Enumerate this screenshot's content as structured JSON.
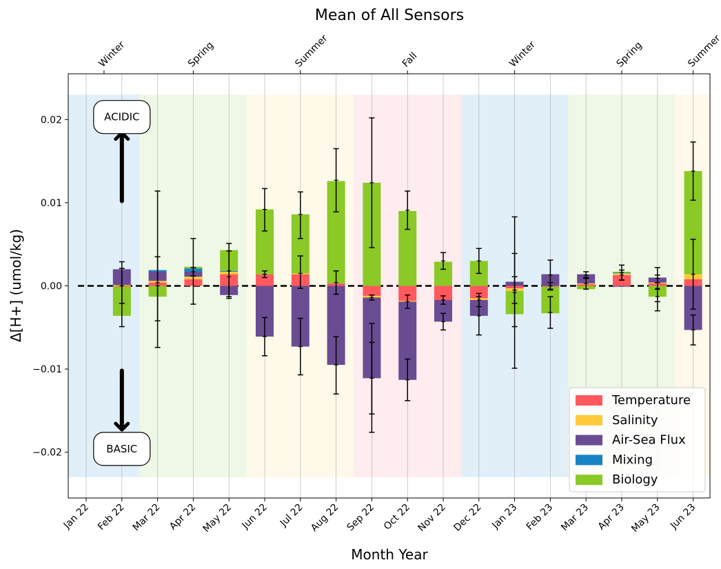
{
  "chart_data": {
    "type": "bar",
    "title": "Mean of All Sensors",
    "xlabel": "Month Year",
    "ylabel": "Δ[H+] (umol/kg)",
    "ylim": [
      -0.0255,
      0.0255
    ],
    "yticks": [
      -0.02,
      -0.01,
      0.0,
      0.01,
      0.02
    ],
    "ytick_labels": [
      "−0.02",
      "−0.01",
      "0.00",
      "0.01",
      "0.02"
    ],
    "categories": [
      "Jan 22",
      "Feb 22",
      "Mar 22",
      "Apr 22",
      "May 22",
      "Jun 22",
      "Jul 22",
      "Aug 22",
      "Sep 22",
      "Oct 22",
      "Nov 22",
      "Dec 22",
      "Jan 23",
      "Feb 23",
      "Mar 23",
      "Apr 23",
      "May 23",
      "Jun 23"
    ],
    "grid": "vertical",
    "legend_position": "lower-right",
    "colors": {
      "Temperature": "#ff595e",
      "Salinity": "#ffca3a",
      "Air-Sea Flux": "#6a4c93",
      "Mixing": "#1982c4",
      "Biology": "#8ac926",
      "Winter": "#d7e9f5",
      "Spring": "#e9f4de",
      "Summer": "#fdf7e2",
      "Fall": "#fde6e8"
    },
    "series": [
      {
        "name": "Temperature",
        "values": [
          null,
          -0.0001,
          0.0004,
          0.0008,
          0.0014,
          0.0014,
          0.0014,
          0.0003,
          -0.0012,
          -0.0018,
          -0.0017,
          -0.0015,
          -0.0003,
          -0.0001,
          0.0002,
          0.0013,
          0.0003,
          0.0008
        ]
      },
      {
        "name": "Salinity",
        "values": [
          null,
          0.0001,
          0.0002,
          0.0003,
          0.0003,
          0.0,
          0.0001,
          0.0,
          -0.0002,
          -0.0001,
          0.0,
          -0.0002,
          -0.0003,
          0.0,
          0.0001,
          0.0002,
          0.0001,
          0.0006
        ]
      },
      {
        "name": "Air-Sea Flux",
        "values": [
          null,
          0.0019,
          0.0011,
          0.0006,
          -0.0011,
          -0.0061,
          -0.0073,
          -0.0095,
          -0.0097,
          -0.0094,
          -0.0026,
          -0.0019,
          0.0005,
          0.0014,
          0.0011,
          -0.0001,
          0.0006,
          -0.0053
        ]
      },
      {
        "name": "Mixing",
        "values": [
          null,
          0.0,
          0.0002,
          0.0004,
          0.0001,
          0.0,
          0.0,
          0.0,
          0.0,
          0.0,
          0.0,
          0.0,
          0.0,
          0.0,
          0.0,
          0.0001,
          0.0,
          0.0
        ]
      },
      {
        "name": "Biology",
        "values": [
          null,
          -0.0035,
          -0.0013,
          0.0002,
          0.0025,
          0.0078,
          0.0071,
          0.0123,
          0.0124,
          0.009,
          0.0029,
          0.003,
          -0.0028,
          -0.0032,
          -0.0004,
          0.0001,
          -0.0013,
          0.0124
        ]
      }
    ],
    "error_bars": [
      [],
      [
        {
          "value": 0.0,
          "plus": 0.0029,
          "minus": 0.0049
        },
        {
          "value": 0.0,
          "plus": 0.0021,
          "minus": 0.0021
        }
      ],
      [
        {
          "value": 0.0004,
          "plus": 0.011,
          "minus": 0.0078
        },
        {
          "value": 0.0,
          "plus": 0.0035,
          "minus": 0.0042
        }
      ],
      [
        {
          "value": 0.0012,
          "plus": 0.0045,
          "minus": 0.0034
        },
        {
          "value": 0.0017,
          "plus": 0.0005,
          "minus": 0.0005
        }
      ],
      [
        {
          "value": 0.0018,
          "plus": 0.0033,
          "minus": 0.0033
        },
        {
          "value": 0.0011,
          "plus": 0.0031,
          "minus": 0.0024
        }
      ],
      [
        {
          "value": 0.0092,
          "plus": 0.0025,
          "minus": 0.0026
        },
        {
          "value": 0.0014,
          "plus": 0.0004,
          "minus": 0.0004
        },
        {
          "value": -0.0061,
          "plus": 0.0023,
          "minus": 0.0023
        }
      ],
      [
        {
          "value": 0.0086,
          "plus": 0.0027,
          "minus": 0.0029
        },
        {
          "value": 0.0015,
          "plus": 0.0021,
          "minus": 0.0018
        },
        {
          "value": -0.0073,
          "plus": 0.0034,
          "minus": 0.0034
        }
      ],
      [
        {
          "value": 0.0127,
          "plus": 0.0038,
          "minus": 0.0038
        },
        {
          "value": 0.0004,
          "plus": 0.0014,
          "minus": 0.0014
        },
        {
          "value": -0.0095,
          "plus": 0.0034,
          "minus": 0.0035
        }
      ],
      [
        {
          "value": 0.0124,
          "plus": 0.0078,
          "minus": 0.0078
        },
        {
          "value": -0.0014,
          "plus": 0.0003,
          "minus": 0.0003
        },
        {
          "value": -0.0111,
          "plus": 0.0043,
          "minus": 0.0043
        },
        {
          "value": -0.0111,
          "plus": 0.0066,
          "minus": 0.0065
        }
      ],
      [
        {
          "value": 0.0091,
          "plus": 0.0023,
          "minus": 0.0023
        },
        {
          "value": -0.0019,
          "plus": 0.0008,
          "minus": 0.0008
        },
        {
          "value": -0.0113,
          "plus": 0.0025,
          "minus": 0.0025
        }
      ],
      [
        {
          "value": 0.003,
          "plus": 0.001,
          "minus": 0.001
        },
        {
          "value": -0.0017,
          "plus": 0.0005,
          "minus": 0.0005
        },
        {
          "value": -0.0043,
          "plus": 0.001,
          "minus": 0.001
        }
      ],
      [
        {
          "value": 0.003,
          "plus": 0.0015,
          "minus": 0.0015
        },
        {
          "value": -0.0017,
          "plus": 0.0008,
          "minus": 0.0008
        },
        {
          "value": -0.0036,
          "plus": 0.0023,
          "minus": 0.0023
        }
      ],
      [
        {
          "value": -0.0008,
          "plus": 0.0091,
          "minus": 0.0091
        },
        {
          "value": -0.0005,
          "plus": 0.0016,
          "minus": 0.0016
        },
        {
          "value": -0.0005,
          "plus": 0.0044,
          "minus": 0.0044
        }
      ],
      [
        {
          "value": 0.0013,
          "plus": 0.0018,
          "minus": 0.0018
        },
        {
          "value": -0.0032,
          "plus": 0.0019,
          "minus": 0.0019
        },
        {
          "value": 0.0,
          "plus": 0.0004,
          "minus": 0.0004
        }
      ],
      [
        {
          "value": 0.0003,
          "plus": 0.0007,
          "minus": 0.0007
        },
        {
          "value": 0.0013,
          "plus": 0.0004,
          "minus": 0.0004
        }
      ],
      [
        {
          "value": 0.0016,
          "plus": 0.0009,
          "minus": 0.0009
        },
        {
          "value": 0.0013,
          "plus": 0.0006,
          "minus": 0.0006
        }
      ],
      [
        {
          "value": 0.0009,
          "plus": 0.0013,
          "minus": 0.0013
        },
        {
          "value": -0.0003,
          "plus": 0.0016,
          "minus": 0.0016
        },
        {
          "value": -0.0013,
          "plus": 0.0017,
          "minus": 0.0017
        }
      ],
      [
        {
          "value": 0.0138,
          "plus": 0.0035,
          "minus": 0.0035
        },
        {
          "value": 0.0014,
          "plus": 0.0042,
          "minus": 0.0042
        },
        {
          "value": -0.0053,
          "plus": 0.0018,
          "minus": 0.0018
        }
      ]
    ],
    "seasons": [
      {
        "label": "Winter",
        "color_key": "Winter",
        "start": -0.5,
        "end": 1.5
      },
      {
        "label": "Spring",
        "color_key": "Spring",
        "start": 1.5,
        "end": 4.5
      },
      {
        "label": "Summer",
        "color_key": "Summer",
        "start": 4.5,
        "end": 7.5
      },
      {
        "label": "Fall",
        "color_key": "Fall",
        "start": 7.5,
        "end": 10.5
      },
      {
        "label": "Winter",
        "color_key": "Winter",
        "start": 10.5,
        "end": 13.5
      },
      {
        "label": "Spring",
        "color_key": "Spring",
        "start": 13.5,
        "end": 16.5
      },
      {
        "label": "Summer",
        "color_key": "Summer",
        "start": 16.5,
        "end": 17.5
      }
    ],
    "top_axis_labels": [
      {
        "label": "Winter",
        "x": 0.5
      },
      {
        "label": "Spring",
        "x": 3.0
      },
      {
        "label": "Summer",
        "x": 6.0
      },
      {
        "label": "Fall",
        "x": 9.0
      },
      {
        "label": "Winter",
        "x": 12.0
      },
      {
        "label": "Spring",
        "x": 15.0
      },
      {
        "label": "Summer",
        "x": 17.0
      }
    ],
    "annotations": [
      {
        "text": "ACIDIC",
        "at": 1,
        "y": 0.0203,
        "arrow_from": 0.0102,
        "arrow_to": 0.0184
      },
      {
        "text": "BASIC",
        "at": 1,
        "y": -0.0196,
        "arrow_from": -0.0102,
        "arrow_to": -0.0173
      }
    ]
  }
}
